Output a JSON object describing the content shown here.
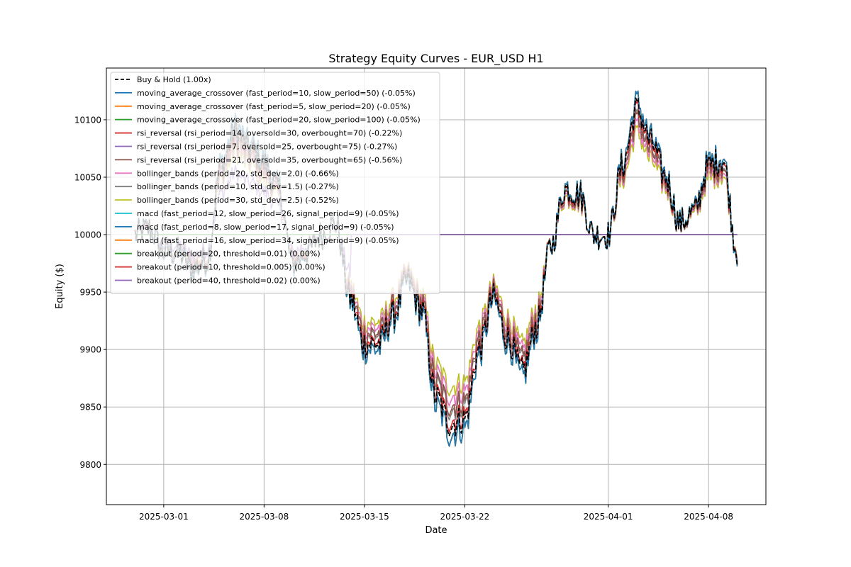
{
  "chart_data": {
    "type": "line",
    "title": "Strategy Equity Curves - EUR_USD H1",
    "xlabel": "Date",
    "ylabel": "Equity ($)",
    "x_range": [
      "2025-02-25",
      "2025-04-12"
    ],
    "ylim": [
      9765,
      10145
    ],
    "grid": true,
    "legend_position": "top-left",
    "x_ticks": [
      {
        "date": "2025-03-01",
        "label": "2025-03-01"
      },
      {
        "date": "2025-03-08",
        "label": "2025-03-08"
      },
      {
        "date": "2025-03-15",
        "label": "2025-03-15"
      },
      {
        "date": "2025-03-22",
        "label": "2025-03-22"
      },
      {
        "date": "2025-04-01",
        "label": "2025-04-01"
      },
      {
        "date": "2025-04-08",
        "label": "2025-04-08"
      }
    ],
    "y_ticks": [
      9800,
      9850,
      9900,
      9950,
      10000,
      10050,
      10100
    ],
    "base_path": [
      {
        "x": "2025-02-27",
        "y": 10000
      },
      {
        "x": "2025-02-28",
        "y": 10005
      },
      {
        "x": "2025-03-01",
        "y": 9985
      },
      {
        "x": "2025-03-02",
        "y": 9985
      },
      {
        "x": "2025-03-03",
        "y": 9970
      },
      {
        "x": "2025-03-04",
        "y": 9978
      },
      {
        "x": "2025-03-05",
        "y": 10060
      },
      {
        "x": "2025-03-06",
        "y": 10090
      },
      {
        "x": "2025-03-07",
        "y": 10075
      },
      {
        "x": "2025-03-08",
        "y": 10062
      },
      {
        "x": "2025-03-09",
        "y": 10040
      },
      {
        "x": "2025-03-10",
        "y": 9975
      },
      {
        "x": "2025-03-11",
        "y": 9985
      },
      {
        "x": "2025-03-12",
        "y": 10000
      },
      {
        "x": "2025-03-13",
        "y": 10010
      },
      {
        "x": "2025-03-14",
        "y": 9945
      },
      {
        "x": "2025-03-15",
        "y": 9905
      },
      {
        "x": "2025-03-16",
        "y": 9905
      },
      {
        "x": "2025-03-17",
        "y": 9930
      },
      {
        "x": "2025-03-18",
        "y": 9960
      },
      {
        "x": "2025-03-19",
        "y": 9935
      },
      {
        "x": "2025-03-20",
        "y": 9858
      },
      {
        "x": "2025-03-21",
        "y": 9835
      },
      {
        "x": "2025-03-22",
        "y": 9840
      },
      {
        "x": "2025-03-23",
        "y": 9900
      },
      {
        "x": "2025-03-24",
        "y": 9945
      },
      {
        "x": "2025-03-25",
        "y": 9910
      },
      {
        "x": "2025-03-26",
        "y": 9880
      },
      {
        "x": "2025-03-27",
        "y": 9920
      },
      {
        "x": "2025-03-28",
        "y": 9990
      },
      {
        "x": "2025-03-29",
        "y": 10040
      },
      {
        "x": "2025-03-30",
        "y": 10035
      },
      {
        "x": "2025-03-31",
        "y": 10000
      },
      {
        "x": "2025-04-01",
        "y": 10000
      },
      {
        "x": "2025-04-02",
        "y": 10060
      },
      {
        "x": "2025-04-03",
        "y": 10110
      },
      {
        "x": "2025-04-04",
        "y": 10080
      },
      {
        "x": "2025-04-05",
        "y": 10050
      },
      {
        "x": "2025-04-06",
        "y": 10010
      },
      {
        "x": "2025-04-07",
        "y": 10020
      },
      {
        "x": "2025-04-08",
        "y": 10060
      },
      {
        "x": "2025-04-09",
        "y": 10065
      },
      {
        "x": "2025-04-10",
        "y": 9985
      }
    ],
    "series": [
      {
        "name": "Buy & Hold (1.00x)",
        "color": "#000000",
        "dashed": true,
        "scale": 1.0,
        "flat_after": null
      },
      {
        "name": "moving_average_crossover (fast_period=10, slow_period=50) (-0.05%)",
        "color": "#1f77b4",
        "dashed": false,
        "scale": 1.05,
        "flat_after": null
      },
      {
        "name": "moving_average_crossover (fast_period=5, slow_period=20) (-0.05%)",
        "color": "#ff7f0e",
        "dashed": false,
        "scale": 1.05,
        "flat_after": null
      },
      {
        "name": "moving_average_crossover (fast_period=20, slow_period=100) (-0.05%)",
        "color": "#2ca02c",
        "dashed": false,
        "scale": 1.05,
        "flat_after": null
      },
      {
        "name": "rsi_reversal (rsi_period=14, oversold=30, overbought=70) (-0.22%)",
        "color": "#d62728",
        "dashed": false,
        "scale": 0.98,
        "flat_after": null
      },
      {
        "name": "rsi_reversal (rsi_period=7, oversold=25, overbought=75) (-0.27%)",
        "color": "#9467bd",
        "dashed": false,
        "scale": 0.6,
        "flat_after": "2025-03-14"
      },
      {
        "name": "rsi_reversal (rsi_period=21, oversold=35, overbought=65) (-0.56%)",
        "color": "#8c564b",
        "dashed": false,
        "scale": 0.9,
        "flat_after": null
      },
      {
        "name": "bollinger_bands (period=20, std_dev=2.0) (-0.66%)",
        "color": "#e377c2",
        "dashed": false,
        "scale": 0.85,
        "flat_after": null
      },
      {
        "name": "bollinger_bands (period=10, std_dev=1.5) (-0.27%)",
        "color": "#7f7f7f",
        "dashed": false,
        "scale": 0.92,
        "flat_after": null
      },
      {
        "name": "bollinger_bands (period=30, std_dev=2.5) (-0.52%)",
        "color": "#bcbd22",
        "dashed": false,
        "scale": 0.8,
        "flat_after": null
      },
      {
        "name": "macd (fast_period=12, slow_period=26, signal_period=9) (-0.05%)",
        "color": "#17becf",
        "dashed": false,
        "scale": 1.05,
        "flat_after": null
      },
      {
        "name": "macd (fast_period=8, slow_period=17, signal_period=9) (-0.05%)",
        "color": "#1f77b4",
        "dashed": false,
        "scale": 1.05,
        "flat_after": null
      },
      {
        "name": "macd (fast_period=16, slow_period=34, signal_period=9) (-0.05%)",
        "color": "#ff7f0e",
        "dashed": false,
        "scale": 1.05,
        "flat_after": null
      },
      {
        "name": "breakout (period=20, threshold=0.01) (0.00%)",
        "color": "#2ca02c",
        "dashed": false,
        "scale": 0,
        "flat_after": null
      },
      {
        "name": "breakout (period=10, threshold=0.005) (0.00%)",
        "color": "#d62728",
        "dashed": false,
        "scale": 0,
        "flat_after": null
      },
      {
        "name": "breakout (period=40, threshold=0.02) (0.00%)",
        "color": "#9467bd",
        "dashed": false,
        "scale": 0,
        "flat_after": null
      }
    ]
  }
}
